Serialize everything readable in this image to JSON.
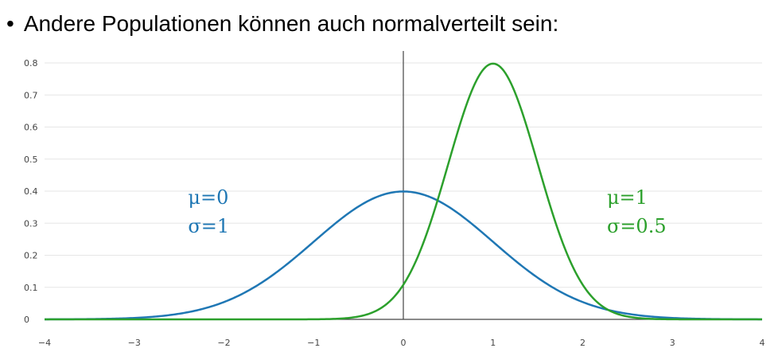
{
  "slide": {
    "bullet": "•",
    "heading": "Andere Populationen können auch normalverteilt sein:"
  },
  "chart_data": {
    "type": "line",
    "xlim": [
      -4,
      4
    ],
    "ylim": [
      0,
      0.8
    ],
    "grid": true,
    "x_ticks": [
      "−4",
      "−3",
      "−2",
      "−1",
      "0",
      "1",
      "2",
      "3",
      "4"
    ],
    "y_ticks": [
      "0",
      "0.1",
      "0.2",
      "0.3",
      "0.4",
      "0.5",
      "0.6",
      "0.7",
      "0.8"
    ],
    "series": [
      {
        "mu": 0,
        "sigma": 1,
        "color": "#1f77b4",
        "annotation": [
          "μ=0",
          "σ=1"
        ]
      },
      {
        "mu": 1,
        "sigma": 0.5,
        "color": "#2ca02c",
        "annotation": [
          "μ=1",
          "σ=0.5"
        ]
      }
    ]
  }
}
